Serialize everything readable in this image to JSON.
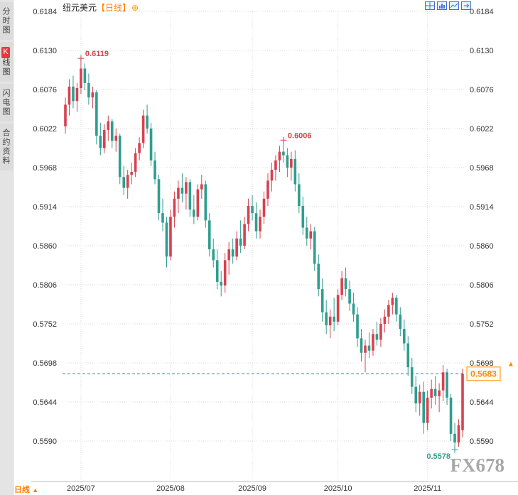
{
  "sidebar": {
    "tabs": [
      {
        "label": "分时图"
      },
      {
        "prefix": "K",
        "label": "线图",
        "active": true
      },
      {
        "label": "闪电图"
      },
      {
        "label": "合约资料"
      }
    ]
  },
  "header": {
    "symbol": "纽元美元",
    "period_tag": "【日线】",
    "add_icon": "⊕"
  },
  "toolbar_icons": [
    "grid-layout-icon",
    "bar-chart-icon",
    "line-chart-icon",
    "expand-icon"
  ],
  "footer": {
    "period_label": "日线",
    "arrow": "▲"
  },
  "watermark": "FX678",
  "colors": {
    "up": "#d8414f",
    "down": "#2f9e8f",
    "grid": "#dadada",
    "axis_text": "#333333",
    "dashed_line": "#2e7fa0",
    "accent_orange": "#ff8a00",
    "watermark": "#999999",
    "active_tab": "#e4393c"
  },
  "chart_data": {
    "type": "candlestick",
    "symbol": "纽元美元 (NZD/USD)",
    "interval": "日线 (daily)",
    "current_price": 0.5683,
    "y_axis": {
      "max": 0.6184,
      "min": 0.5537,
      "ticks": [
        0.6184,
        0.613,
        0.6076,
        0.6022,
        0.5968,
        0.5914,
        0.586,
        0.5806,
        0.5752,
        0.5698,
        0.5644,
        0.559
      ]
    },
    "x_ticks": [
      "2025/07",
      "2025/08",
      "2025/09",
      "2025/10",
      "2025/11"
    ],
    "annotations": [
      {
        "index": 4,
        "price": 0.6119,
        "label": "0.6119",
        "color": "#d8414f",
        "position": "above"
      },
      {
        "index": 56,
        "price": 0.6006,
        "label": "0.6006",
        "color": "#d8414f",
        "position": "above"
      },
      {
        "index": 100,
        "price": 0.5578,
        "label": "0.5578",
        "color": "#2f9e8f",
        "position": "below"
      }
    ],
    "candles": [
      [
        "2025-06-25",
        0.6025,
        0.6065,
        0.6015,
        0.6055
      ],
      [
        "2025-06-26",
        0.6055,
        0.609,
        0.604,
        0.608
      ],
      [
        "2025-06-27",
        0.608,
        0.6095,
        0.605,
        0.606
      ],
      [
        "2025-06-30",
        0.606,
        0.6085,
        0.6045,
        0.6078
      ],
      [
        "2025-07-01",
        0.6078,
        0.6119,
        0.607,
        0.6105
      ],
      [
        "2025-07-02",
        0.6105,
        0.6112,
        0.6075,
        0.6085
      ],
      [
        "2025-07-03",
        0.6085,
        0.6098,
        0.6055,
        0.6065
      ],
      [
        "2025-07-04",
        0.6065,
        0.608,
        0.605,
        0.6072
      ],
      [
        "2025-07-07",
        0.6072,
        0.6075,
        0.6,
        0.6012
      ],
      [
        "2025-07-08",
        0.6012,
        0.603,
        0.5985,
        0.5995
      ],
      [
        "2025-07-09",
        0.5995,
        0.6028,
        0.5988,
        0.602
      ],
      [
        "2025-07-10",
        0.602,
        0.604,
        0.6005,
        0.6032
      ],
      [
        "2025-07-11",
        0.6032,
        0.6035,
        0.5995,
        0.6005
      ],
      [
        "2025-07-14",
        0.6005,
        0.6022,
        0.599,
        0.6012
      ],
      [
        "2025-07-15",
        0.6012,
        0.6015,
        0.5945,
        0.5955
      ],
      [
        "2025-07-16",
        0.5955,
        0.597,
        0.593,
        0.594
      ],
      [
        "2025-07-17",
        0.594,
        0.5965,
        0.5925,
        0.5958
      ],
      [
        "2025-07-18",
        0.5958,
        0.5975,
        0.5945,
        0.5962
      ],
      [
        "2025-07-21",
        0.5962,
        0.5995,
        0.5955,
        0.5988
      ],
      [
        "2025-07-22",
        0.5988,
        0.601,
        0.5978,
        0.6002
      ],
      [
        "2025-07-23",
        0.6002,
        0.6048,
        0.5995,
        0.604
      ],
      [
        "2025-07-24",
        0.604,
        0.6055,
        0.6015,
        0.6022
      ],
      [
        "2025-07-25",
        0.6022,
        0.603,
        0.597,
        0.5978
      ],
      [
        "2025-07-28",
        0.5978,
        0.599,
        0.5945,
        0.5952
      ],
      [
        "2025-07-29",
        0.5952,
        0.5958,
        0.5895,
        0.5905
      ],
      [
        "2025-07-30",
        0.5905,
        0.5925,
        0.588,
        0.5892
      ],
      [
        "2025-07-31",
        0.5892,
        0.59,
        0.583,
        0.5845
      ],
      [
        "2025-08-01",
        0.5845,
        0.591,
        0.584,
        0.59
      ],
      [
        "2025-08-04",
        0.59,
        0.5935,
        0.5885,
        0.5925
      ],
      [
        "2025-08-05",
        0.5925,
        0.595,
        0.5905,
        0.594
      ],
      [
        "2025-08-06",
        0.594,
        0.596,
        0.592,
        0.5932
      ],
      [
        "2025-08-07",
        0.5932,
        0.5955,
        0.591,
        0.5948
      ],
      [
        "2025-08-08",
        0.5948,
        0.5952,
        0.59,
        0.591
      ],
      [
        "2025-08-11",
        0.591,
        0.593,
        0.589,
        0.59
      ],
      [
        "2025-08-12",
        0.59,
        0.5945,
        0.5895,
        0.5938
      ],
      [
        "2025-08-13",
        0.5938,
        0.5958,
        0.5925,
        0.5945
      ],
      [
        "2025-08-14",
        0.5945,
        0.595,
        0.5885,
        0.5895
      ],
      [
        "2025-08-15",
        0.5895,
        0.5905,
        0.5845,
        0.5855
      ],
      [
        "2025-08-18",
        0.5855,
        0.587,
        0.583,
        0.584
      ],
      [
        "2025-08-19",
        0.584,
        0.5855,
        0.58,
        0.581
      ],
      [
        "2025-08-20",
        0.581,
        0.5825,
        0.579,
        0.5805
      ],
      [
        "2025-08-21",
        0.5805,
        0.585,
        0.5795,
        0.584
      ],
      [
        "2025-08-22",
        0.584,
        0.5865,
        0.582,
        0.5855
      ],
      [
        "2025-08-25",
        0.5855,
        0.587,
        0.5835,
        0.5845
      ],
      [
        "2025-08-26",
        0.5845,
        0.588,
        0.584,
        0.587
      ],
      [
        "2025-08-27",
        0.587,
        0.5895,
        0.585,
        0.586
      ],
      [
        "2025-08-28",
        0.586,
        0.59,
        0.5855,
        0.589
      ],
      [
        "2025-08-29",
        0.589,
        0.5925,
        0.588,
        0.5915
      ],
      [
        "2025-09-01",
        0.5915,
        0.593,
        0.5895,
        0.5905
      ],
      [
        "2025-09-02",
        0.5905,
        0.592,
        0.587,
        0.588
      ],
      [
        "2025-09-03",
        0.588,
        0.591,
        0.587,
        0.59
      ],
      [
        "2025-09-04",
        0.59,
        0.5935,
        0.589,
        0.5925
      ],
      [
        "2025-09-05",
        0.5925,
        0.596,
        0.5915,
        0.595
      ],
      [
        "2025-09-08",
        0.595,
        0.5975,
        0.5935,
        0.5965
      ],
      [
        "2025-09-09",
        0.5965,
        0.5985,
        0.595,
        0.5978
      ],
      [
        "2025-09-10",
        0.5978,
        0.5998,
        0.5962,
        0.599
      ],
      [
        "2025-09-11",
        0.599,
        0.6006,
        0.5975,
        0.5985
      ],
      [
        "2025-09-12",
        0.5985,
        0.5995,
        0.5955,
        0.5968
      ],
      [
        "2025-09-15",
        0.5968,
        0.599,
        0.595,
        0.598
      ],
      [
        "2025-09-16",
        0.598,
        0.5992,
        0.5935,
        0.5945
      ],
      [
        "2025-09-17",
        0.5945,
        0.596,
        0.5905,
        0.5915
      ],
      [
        "2025-09-18",
        0.5915,
        0.5928,
        0.5875,
        0.5885
      ],
      [
        "2025-09-19",
        0.5885,
        0.59,
        0.586,
        0.587
      ],
      [
        "2025-09-22",
        0.587,
        0.589,
        0.5855,
        0.588
      ],
      [
        "2025-09-23",
        0.588,
        0.5886,
        0.5825,
        0.5835
      ],
      [
        "2025-09-24",
        0.5835,
        0.5848,
        0.579,
        0.58
      ],
      [
        "2025-09-25",
        0.58,
        0.5815,
        0.5755,
        0.5768
      ],
      [
        "2025-09-26",
        0.5768,
        0.5785,
        0.5738,
        0.575
      ],
      [
        "2025-09-29",
        0.575,
        0.5772,
        0.5732,
        0.5762
      ],
      [
        "2025-09-30",
        0.5762,
        0.5788,
        0.5742,
        0.5755
      ],
      [
        "2025-10-01",
        0.5755,
        0.58,
        0.575,
        0.5792
      ],
      [
        "2025-10-02",
        0.5792,
        0.5825,
        0.5785,
        0.5815
      ],
      [
        "2025-10-03",
        0.5815,
        0.583,
        0.579,
        0.58
      ],
      [
        "2025-10-06",
        0.58,
        0.5812,
        0.577,
        0.578
      ],
      [
        "2025-10-07",
        0.578,
        0.5795,
        0.5755,
        0.5765
      ],
      [
        "2025-10-08",
        0.5765,
        0.5775,
        0.572,
        0.5732
      ],
      [
        "2025-10-09",
        0.5732,
        0.5745,
        0.57,
        0.5712
      ],
      [
        "2025-10-10",
        0.5712,
        0.573,
        0.5685,
        0.5722
      ],
      [
        "2025-10-13",
        0.5722,
        0.574,
        0.5705,
        0.5715
      ],
      [
        "2025-10-14",
        0.5715,
        0.5745,
        0.5708,
        0.5738
      ],
      [
        "2025-10-15",
        0.5738,
        0.5755,
        0.5722,
        0.573
      ],
      [
        "2025-10-16",
        0.573,
        0.576,
        0.572,
        0.5752
      ],
      [
        "2025-10-17",
        0.5752,
        0.5772,
        0.574,
        0.5762
      ],
      [
        "2025-10-20",
        0.5762,
        0.5785,
        0.5752,
        0.5778
      ],
      [
        "2025-10-21",
        0.5778,
        0.5795,
        0.5765,
        0.5788
      ],
      [
        "2025-10-22",
        0.5788,
        0.5792,
        0.5755,
        0.5765
      ],
      [
        "2025-10-23",
        0.5765,
        0.5775,
        0.5735,
        0.5745
      ],
      [
        "2025-10-24",
        0.5745,
        0.5758,
        0.5715,
        0.5725
      ],
      [
        "2025-10-27",
        0.5725,
        0.5735,
        0.568,
        0.5692
      ],
      [
        "2025-10-28",
        0.5692,
        0.5705,
        0.5655,
        0.5665
      ],
      [
        "2025-10-29",
        0.5665,
        0.568,
        0.563,
        0.5642
      ],
      [
        "2025-10-30",
        0.5642,
        0.5668,
        0.5625,
        0.5658
      ],
      [
        "2025-10-31",
        0.5658,
        0.5672,
        0.56,
        0.5615
      ],
      [
        "2025-11-03",
        0.5615,
        0.566,
        0.5605,
        0.565
      ],
      [
        "2025-11-04",
        0.565,
        0.5675,
        0.5635,
        0.5662
      ],
      [
        "2025-11-05",
        0.5662,
        0.568,
        0.564,
        0.5652
      ],
      [
        "2025-11-06",
        0.5652,
        0.567,
        0.563,
        0.566
      ],
      [
        "2025-11-07",
        0.566,
        0.5695,
        0.5645,
        0.5685
      ],
      [
        "2025-11-10",
        0.5685,
        0.569,
        0.564,
        0.565
      ],
      [
        "2025-11-11",
        0.565,
        0.5655,
        0.559,
        0.56
      ],
      [
        "2025-11-12",
        0.56,
        0.5615,
        0.5578,
        0.5588
      ],
      [
        "2025-11-13",
        0.5588,
        0.562,
        0.5582,
        0.5612
      ],
      [
        "2025-11-14",
        0.5605,
        0.569,
        0.5595,
        0.5683
      ]
    ]
  }
}
